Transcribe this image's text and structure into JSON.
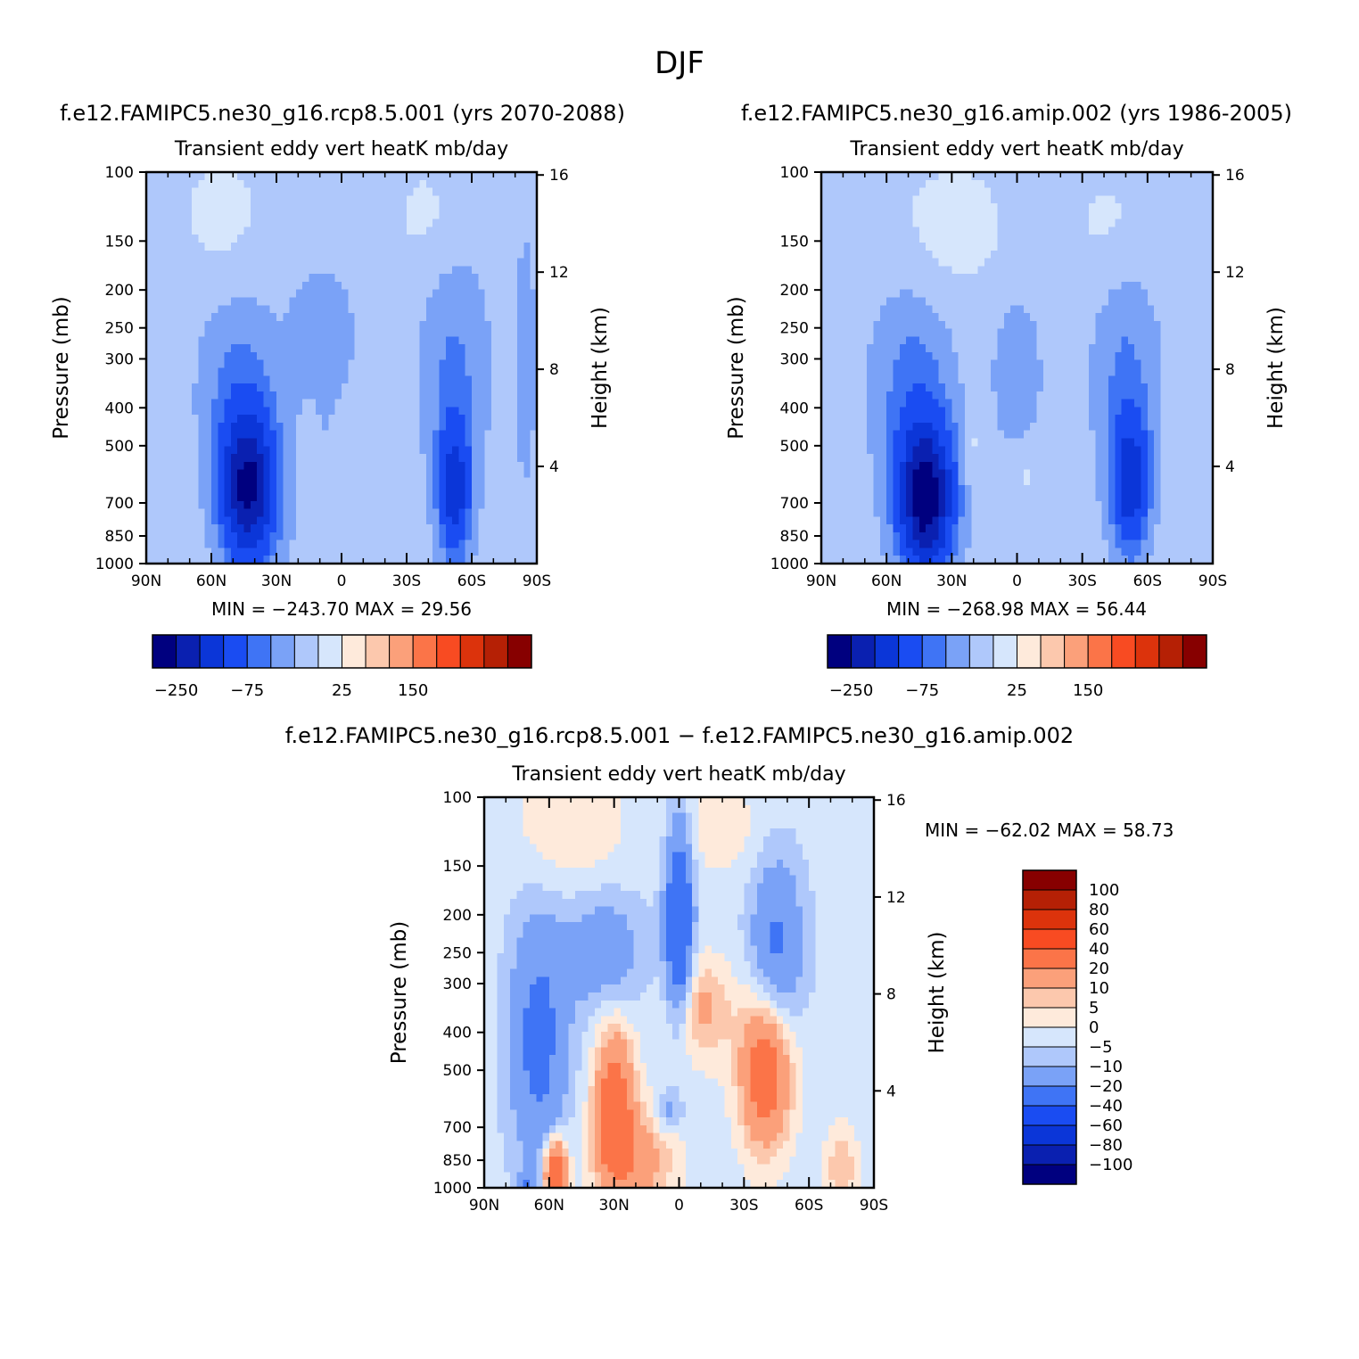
{
  "page_title": "DJF",
  "panels": [
    {
      "title": "f.e12.FAMIPC5.ne30_g16.rcp8.5.001 (yrs 2070-2088)",
      "subtitle": "Transient eddy vert heatK mb/day",
      "stats": "MIN = −243.70   MAX =  29.56"
    },
    {
      "title": "f.e12.FAMIPC5.ne30_g16.amip.002 (yrs 1986-2005)",
      "subtitle": "Transient eddy vert heatK mb/day",
      "stats": "MIN = −268.98   MAX =  56.44"
    },
    {
      "title": "f.e12.FAMIPC5.ne30_g16.rcp8.5.001 − f.e12.FAMIPC5.ne30_g16.amip.002",
      "subtitle": "Transient eddy vert heatK mb/day",
      "stats": "MIN = −62.02   MAX =  58.73"
    }
  ],
  "axes": {
    "ylabel_left": "Pressure (mb)",
    "ylabel_right": "Height (km)",
    "pressure_ticks": [
      "100",
      "150",
      "200",
      "250",
      "300",
      "400",
      "500",
      "700",
      "850",
      "1000"
    ],
    "height_ticks": [
      "16",
      "12",
      "8",
      "4"
    ],
    "lat_ticks": [
      "90N",
      "60N",
      "30N",
      "0",
      "30S",
      "60S",
      "90S"
    ]
  },
  "colorbars": {
    "abs_labels": [
      "−250",
      "−75",
      "25",
      "150"
    ],
    "diff_labels": [
      "100",
      "80",
      "60",
      "40",
      "20",
      "10",
      "5",
      "0",
      "−5",
      "−10",
      "−20",
      "−40",
      "−60",
      "−80",
      "−100"
    ]
  },
  "colors": {
    "palette": [
      "#00007f",
      "#0a20b0",
      "#0b36d8",
      "#1a4cf2",
      "#3f74f5",
      "#7aa2f7",
      "#afc8fb",
      "#d6e6fc",
      "#feeadb",
      "#fcc8ad",
      "#fba07a",
      "#fb7448",
      "#f84b22",
      "#dc330c",
      "#b52005",
      "#870000"
    ]
  },
  "chart_data": [
    {
      "type": "heatmap",
      "title": "f.e12.FAMIPC5.ne30_g16.rcp8.5.001 (yrs 2070-2088)",
      "subtitle": "Transient eddy vert heatK mb/day",
      "xlabel": "",
      "ylabel": "Pressure (mb)",
      "ylabel_right": "Height (km)",
      "x_range": [
        "90N",
        "90S"
      ],
      "y_range": [
        1000,
        100
      ],
      "y_scale": "log",
      "min": -243.7,
      "max": 29.56,
      "features": [
        {
          "lat": 42,
          "p": 650,
          "value": -240
        },
        {
          "lat": -52,
          "p": 640,
          "value": -150
        },
        {
          "lat": 8,
          "p": 250,
          "value": -25
        },
        {
          "lat": 15,
          "p": 520,
          "value": 5
        }
      ]
    },
    {
      "type": "heatmap",
      "title": "f.e12.FAMIPC5.ne30_g16.amip.002 (yrs 1986-2005)",
      "subtitle": "Transient eddy vert heatK mb/day",
      "xlabel": "",
      "ylabel": "Pressure (mb)",
      "ylabel_right": "Height (km)",
      "x_range": [
        "90N",
        "90S"
      ],
      "y_range": [
        1000,
        100
      ],
      "y_scale": "log",
      "min": -268.98,
      "max": 56.44,
      "features": [
        {
          "lat": 42,
          "p": 680,
          "value": -265
        },
        {
          "lat": -52,
          "p": 620,
          "value": -150
        },
        {
          "lat": 5,
          "p": 300,
          "value": -25
        },
        {
          "lat": 20,
          "p": 500,
          "value": 5
        }
      ]
    },
    {
      "type": "heatmap",
      "title": "f.e12.FAMIPC5.ne30_g16.rcp8.5.001 − f.e12.FAMIPC5.ne30_g16.amip.002",
      "subtitle": "Transient eddy vert heatK mb/day",
      "xlabel": "",
      "ylabel": "Pressure (mb)",
      "ylabel_right": "Height (km)",
      "x_range": [
        "90N",
        "90S"
      ],
      "y_range": [
        1000,
        100
      ],
      "y_scale": "log",
      "min": -62.02,
      "max": 58.73,
      "features": [
        {
          "lat": 58,
          "p": 900,
          "value": 45
        },
        {
          "lat": 30,
          "p": 600,
          "value": 30
        },
        {
          "lat": -40,
          "p": 500,
          "value": 35
        },
        {
          "lat": 0,
          "p": 200,
          "value": -40
        },
        {
          "lat": 65,
          "p": 400,
          "value": -20
        },
        {
          "lat": -45,
          "p": 250,
          "value": -20
        }
      ]
    }
  ]
}
